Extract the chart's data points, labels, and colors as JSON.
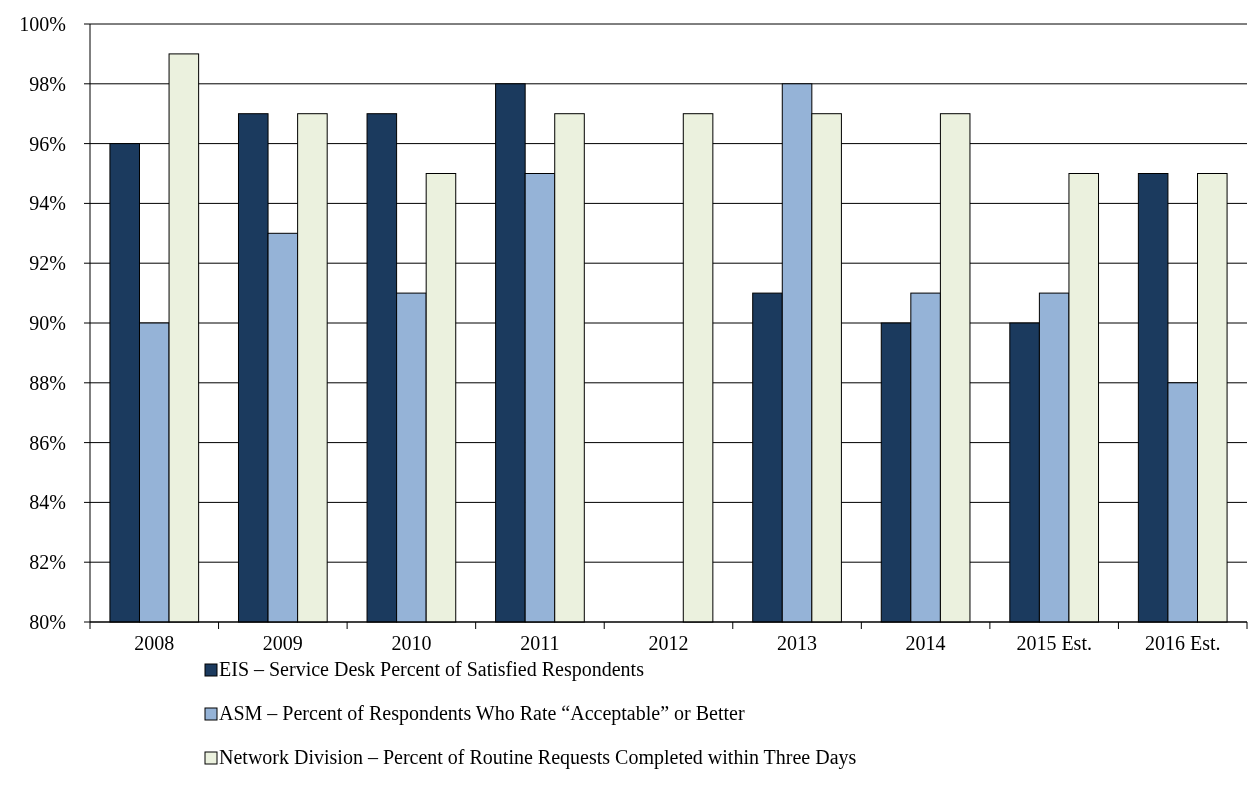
{
  "chart_data": {
    "type": "bar",
    "categories": [
      "2008",
      "2009",
      "2010",
      "2011",
      "2012",
      "2013",
      "2014",
      "2015 Est.",
      "2016 Est."
    ],
    "series": [
      {
        "name": "EIS – Service Desk Percent of Satisfied Respondents",
        "color": "#1b3a5e",
        "values": [
          96,
          97,
          97,
          98,
          null,
          91,
          90,
          90,
          95
        ]
      },
      {
        "name": "ASM – Percent of Respondents Who Rate “Acceptable” or Better",
        "color": "#95b3d7",
        "values": [
          90,
          93,
          91,
          95,
          null,
          98,
          91,
          91,
          88
        ]
      },
      {
        "name": "Network Division – Percent of Routine Requests Completed within Three Days",
        "color": "#ebf1de",
        "values": [
          99,
          97,
          95,
          97,
          97,
          97,
          97,
          95,
          95
        ]
      }
    ],
    "ylim": [
      80,
      100
    ],
    "yticks": [
      {
        "value": 80,
        "label": "80%"
      },
      {
        "value": 82,
        "label": "82%"
      },
      {
        "value": 84,
        "label": "84%"
      },
      {
        "value": 86,
        "label": "86%"
      },
      {
        "value": 88,
        "label": "88%"
      },
      {
        "value": 90,
        "label": "90%"
      },
      {
        "value": 92,
        "label": "92%"
      },
      {
        "value": 94,
        "label": "94%"
      },
      {
        "value": 96,
        "label": "96%"
      },
      {
        "value": 98,
        "label": "98%"
      },
      {
        "value": 100,
        "label": "100%"
      }
    ],
    "grid": "y",
    "legend": "bottom"
  }
}
